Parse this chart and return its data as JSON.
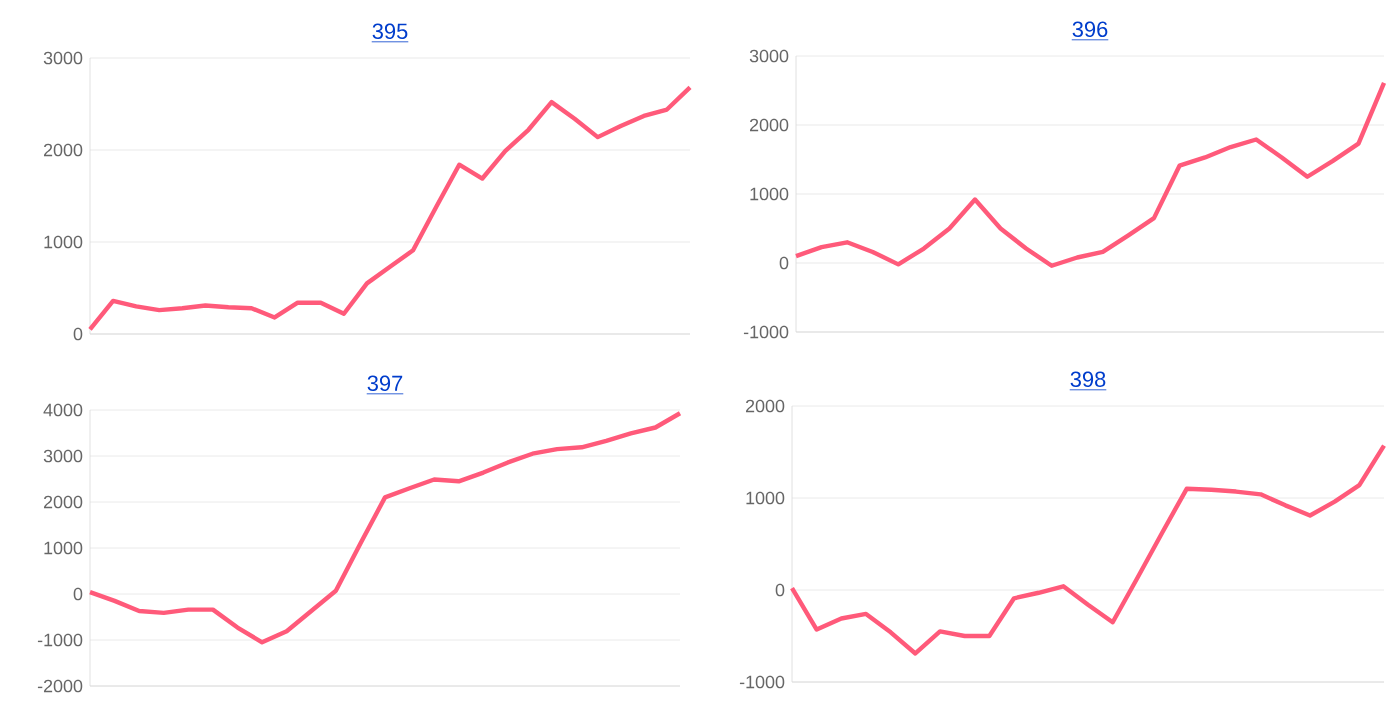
{
  "chart_data": [
    {
      "type": "line",
      "title": "395",
      "categories": [
        null,
        null,
        null,
        null,
        null,
        null,
        null,
        null,
        null,
        null,
        null,
        null,
        null,
        null,
        null,
        null,
        null,
        null,
        null,
        null,
        null,
        null,
        null,
        null,
        null,
        null,
        null
      ],
      "series": [
        {
          "color": "#ff5a7a",
          "values": [
            50,
            360,
            300,
            260,
            280,
            310,
            290,
            280,
            180,
            340,
            340,
            220,
            550,
            730,
            910,
            1380,
            1840,
            1690,
            1990,
            2220,
            2520,
            2340,
            2140,
            2260,
            2370,
            2440,
            2680
          ]
        }
      ],
      "ylim": [
        0,
        3000
      ],
      "yticks": [
        0,
        1000,
        2000,
        3000
      ],
      "grid": "y",
      "tick_labels": "y",
      "marker": "none",
      "line_style": "solid"
    },
    {
      "type": "line",
      "title": "396",
      "categories": [
        null,
        null,
        null,
        null,
        null,
        null,
        null,
        null,
        null,
        null,
        null,
        null,
        null,
        null,
        null,
        null,
        null,
        null,
        null,
        null,
        null,
        null,
        null,
        null
      ],
      "series": [
        {
          "color": "#ff5a7a",
          "values": [
            100,
            230,
            300,
            160,
            -20,
            210,
            500,
            920,
            500,
            210,
            -40,
            80,
            160,
            400,
            650,
            1410,
            1530,
            1680,
            1790,
            1530,
            1250,
            1480,
            1730,
            2610
          ]
        }
      ],
      "ylim": [
        -1000,
        3000
      ],
      "yticks": [
        -1000,
        0,
        1000,
        2000,
        3000
      ],
      "grid": "y",
      "tick_labels": "y",
      "marker": "none",
      "line_style": "solid"
    },
    {
      "type": "line",
      "title": "397",
      "categories": [
        null,
        null,
        null,
        null,
        null,
        null,
        null,
        null,
        null,
        null,
        null,
        null,
        null,
        null,
        null,
        null,
        null,
        null,
        null,
        null,
        null,
        null,
        null,
        null,
        null
      ],
      "series": [
        {
          "color": "#ff5a7a",
          "values": [
            40,
            -150,
            -370,
            -410,
            -340,
            -340,
            -730,
            -1050,
            -810,
            -370,
            70,
            1100,
            2100,
            2300,
            2490,
            2450,
            2640,
            2860,
            3050,
            3150,
            3190,
            3330,
            3490,
            3620,
            3930
          ]
        }
      ],
      "ylim": [
        -2000,
        4000
      ],
      "yticks": [
        -2000,
        -1000,
        0,
        1000,
        2000,
        3000,
        4000
      ],
      "grid": "y",
      "tick_labels": "y",
      "marker": "none",
      "line_style": "solid"
    },
    {
      "type": "line",
      "title": "398",
      "categories": [
        null,
        null,
        null,
        null,
        null,
        null,
        null,
        null,
        null,
        null,
        null,
        null,
        null,
        null,
        null,
        null,
        null,
        null,
        null,
        null,
        null,
        null,
        null,
        null,
        null
      ],
      "series": [
        {
          "color": "#ff5a7a",
          "values": [
            20,
            -430,
            -310,
            -260,
            -460,
            -690,
            -450,
            -500,
            -500,
            -90,
            -30,
            40,
            -160,
            -350,
            130,
            620,
            1100,
            1090,
            1070,
            1040,
            920,
            810,
            960,
            1140,
            1570
          ]
        }
      ],
      "ylim": [
        -1000,
        2000
      ],
      "yticks": [
        -1000,
        0,
        1000,
        2000
      ],
      "grid": "y",
      "tick_labels": "y",
      "marker": "none",
      "line_style": "solid"
    }
  ]
}
